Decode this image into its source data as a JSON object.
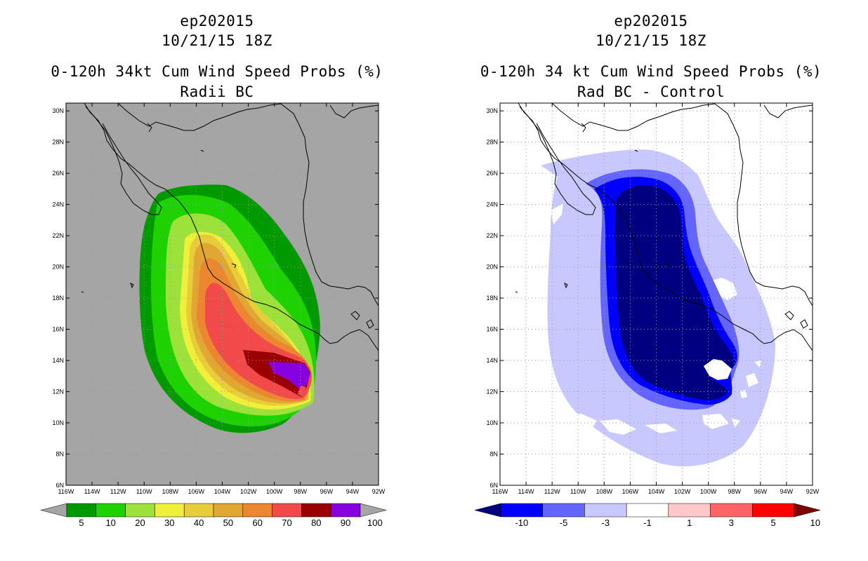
{
  "chart_data": [
    {
      "type": "filled-contour-map",
      "title_lines": [
        "ep202015",
        "10/21/15 18Z",
        "0-120h 34kt Cum Wind Speed Probs (%)",
        "Radii BC"
      ],
      "field": "cumulative 34 kt wind speed probability",
      "units": "%",
      "lon_range": [
        -116,
        -92
      ],
      "lat_range": [
        6,
        30.5
      ],
      "x_ticks": [
        "116W",
        "114W",
        "112W",
        "110W",
        "108W",
        "106W",
        "104W",
        "102W",
        "100W",
        "98W",
        "96W",
        "94W",
        "92W"
      ],
      "y_ticks": [
        "6N",
        "8N",
        "10N",
        "12N",
        "14N",
        "16N",
        "18N",
        "20N",
        "22N",
        "24N",
        "26N",
        "28N",
        "30N"
      ],
      "background_color": "#a5a5a5",
      "colorbar": {
        "labels": [
          "5",
          "10",
          "20",
          "30",
          "40",
          "50",
          "60",
          "70",
          "80",
          "90",
          "100"
        ],
        "colors": [
          "#009900",
          "#1ed200",
          "#9de23b",
          "#f0f03a",
          "#e8cc3a",
          "#e0a733",
          "#ec8631",
          "#f24a4a",
          "#9a0000",
          "#8600e0"
        ],
        "under_color": "#a5a5a5",
        "over_color": "#a5a5a5"
      },
      "approx_contours": [
        {
          "level": 5,
          "lat_extent": [
            9.3,
            25.2
          ],
          "lon_extent": [
            -110.6,
            -96.4
          ]
        },
        {
          "level": 30,
          "lat_extent": [
            11.7,
            22.4
          ],
          "lon_extent": [
            -106.3,
            -97.6
          ]
        },
        {
          "level": 70,
          "lat_extent": [
            11.7,
            18.4
          ],
          "lon_extent": [
            -104.0,
            -97.8
          ]
        },
        {
          "level": 90,
          "lat_extent": [
            11.8,
            13.8
          ],
          "lon_extent": [
            -100.0,
            -97.5
          ]
        }
      ]
    },
    {
      "type": "filled-contour-map",
      "title_lines": [
        "ep202015",
        "10/21/15 18Z",
        "0-120h 34 kt Cum Wind Speed Probs (%)",
        "Rad BC - Control"
      ],
      "field": "difference of cumulative 34 kt wind speed probability (Radii BC minus Control)",
      "units": "%",
      "lon_range": [
        -116,
        -92
      ],
      "lat_range": [
        6,
        30.5
      ],
      "x_ticks": [
        "116W",
        "114W",
        "112W",
        "110W",
        "108W",
        "106W",
        "104W",
        "102W",
        "100W",
        "98W",
        "96W",
        "94W",
        "92W"
      ],
      "y_ticks": [
        "6N",
        "8N",
        "10N",
        "12N",
        "14N",
        "16N",
        "18N",
        "20N",
        "22N",
        "24N",
        "26N",
        "28N",
        "30N"
      ],
      "background_color": "#ffffff",
      "colorbar": {
        "labels": [
          "-10",
          "-5",
          "-3",
          "-1",
          "1",
          "3",
          "5",
          "10"
        ],
        "colors": [
          "#0000ff",
          "#6464ff",
          "#c8c8ff",
          "#ffffff",
          "#ffc8c8",
          "#ff6464",
          "#ff0000"
        ],
        "under_color": "#000080",
        "over_color": "#800000"
      },
      "approx_contours": [
        {
          "level": -1,
          "lat_extent": [
            7.3,
            27.3
          ],
          "lon_extent": [
            -112.6,
            -95.1
          ]
        },
        {
          "level": -3,
          "lat_extent": [
            10.6,
            25.4
          ],
          "lon_extent": [
            -109.1,
            -97.2
          ]
        },
        {
          "level": -5,
          "lat_extent": [
            11.1,
            24.8
          ],
          "lon_extent": [
            -108.4,
            -98.0
          ]
        },
        {
          "level": -10,
          "lat_extent": [
            11.8,
            24.0
          ],
          "lon_extent": [
            -107.8,
            -98.4
          ]
        }
      ]
    }
  ],
  "theme": {
    "coast_color": "#000000",
    "grid_color": "#9a9a9a"
  }
}
